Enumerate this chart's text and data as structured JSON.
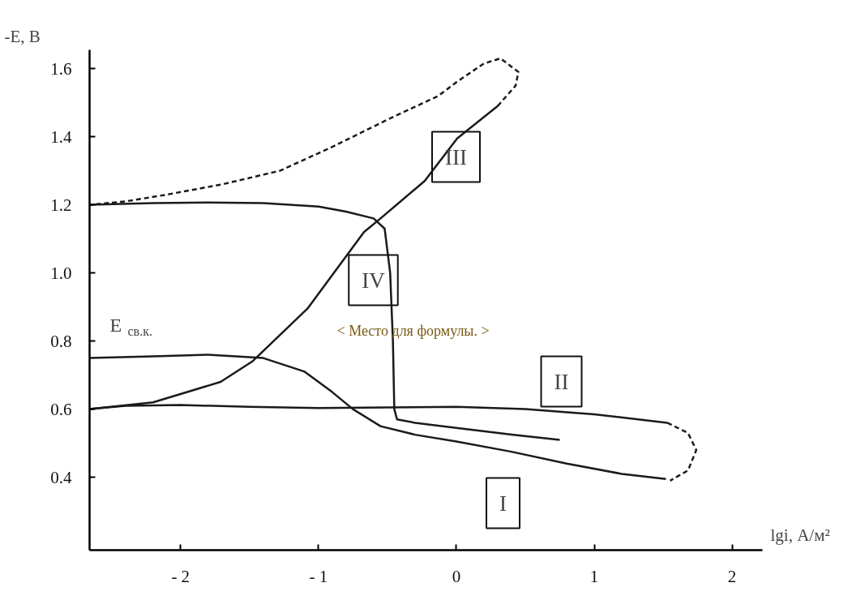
{
  "chart_data": {
    "type": "line",
    "xlabel": "lgi, А/м²",
    "ylabel": "-E, В",
    "xlim": [
      -2.66,
      2.22
    ],
    "ylim": [
      0.186,
      1.655
    ],
    "xticks": [
      {
        "value": -2,
        "label": "- 2"
      },
      {
        "value": -1,
        "label": "- 1"
      },
      0,
      1,
      2
    ],
    "yticks": [
      0.4,
      0.6,
      0.8,
      {
        "value": 1.0,
        "label": "1.0"
      },
      1.2,
      1.4,
      1.6
    ],
    "grid": false,
    "marker": "none",
    "series": [
      {
        "color": "#1a1a1a",
        "line_style": "solid",
        "x": [
          -2.66,
          -2.2,
          -1.8,
          -1.4,
          -1.1,
          -0.9,
          -0.75,
          -0.55,
          -0.3,
          0,
          0.4,
          0.8,
          1.2,
          1.52
        ],
        "values": [
          0.75,
          0.755,
          0.76,
          0.75,
          0.71,
          0.65,
          0.6,
          0.55,
          0.525,
          0.505,
          0.475,
          0.44,
          0.41,
          0.395
        ]
      },
      {
        "color": "#1a1a1a",
        "line_style": "dashed",
        "x": [
          1.53,
          1.68,
          1.74,
          1.68,
          1.55
        ],
        "values": [
          0.56,
          0.53,
          0.48,
          0.42,
          0.39
        ]
      },
      {
        "color": "#1a1a1a",
        "line_style": "solid",
        "x": [
          1.53,
          1.0,
          0.5,
          0,
          -0.5,
          -1,
          -1.5,
          -2,
          -2.4,
          -2.66
        ],
        "values": [
          0.56,
          0.585,
          0.6,
          0.607,
          0.605,
          0.603,
          0.607,
          0.612,
          0.61,
          0.6
        ]
      },
      {
        "color": "#1a1a1a",
        "line_style": "solid",
        "x": [
          -2.66,
          -2.2,
          -1.71,
          -1.48,
          -1.08,
          -0.67,
          -0.55,
          -0.23,
          0.006,
          0.3
        ],
        "values": [
          0.6,
          0.62,
          0.68,
          0.74,
          0.895,
          1.12,
          1.16,
          1.27,
          1.395,
          1.49
        ]
      },
      {
        "color": "#1a1a1a",
        "line_style": "dashed",
        "x": [
          0.3,
          0.43,
          0.45,
          0.32,
          0.2,
          0,
          -0.13,
          -0.5,
          -0.9,
          -1.28,
          -1.7,
          -2.1,
          -2.4,
          -2.66
        ],
        "values": [
          1.49,
          1.55,
          1.59,
          1.63,
          1.615,
          1.56,
          1.52,
          1.45,
          1.37,
          1.3,
          1.26,
          1.23,
          1.21,
          1.2
        ]
      },
      {
        "color": "#1a1a1a",
        "line_style": "solid",
        "x": [
          -2.66,
          -2.2,
          -1.8,
          -1.4,
          -1,
          -0.8,
          -0.6,
          -0.52,
          -0.48,
          -0.46,
          -0.45,
          -0.43,
          -0.3,
          0,
          0.4,
          0.75
        ],
        "values": [
          1.2,
          1.205,
          1.207,
          1.205,
          1.195,
          1.18,
          1.16,
          1.13,
          1.0,
          0.8,
          0.6,
          0.57,
          0.56,
          0.545,
          0.525,
          0.51
        ]
      }
    ],
    "annotations": [
      "I",
      "II",
      "III",
      "IV",
      "E$_{св.к.}$",
      "< Место для формулы. >"
    ]
  }
}
